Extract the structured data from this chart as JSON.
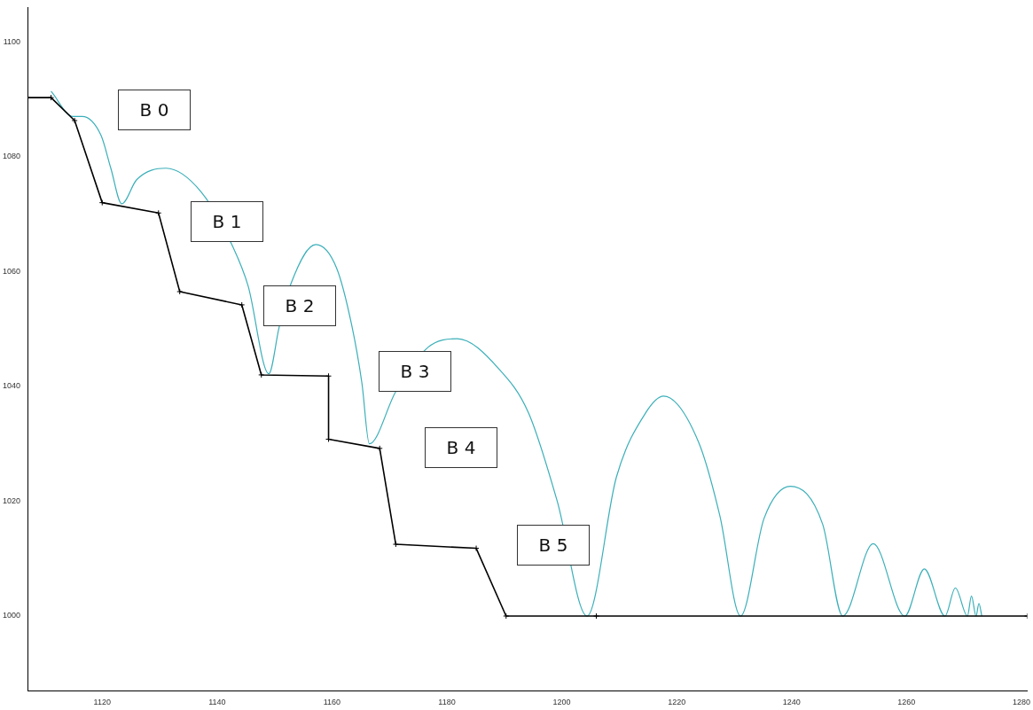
{
  "chart_data": {
    "type": "line",
    "xlim": [
      1107,
      1281
    ],
    "ylim": [
      987,
      1106
    ],
    "xticks": [
      1120,
      1140,
      1160,
      1180,
      1200,
      1220,
      1240,
      1260,
      1280
    ],
    "yticks": [
      1000,
      1020,
      1040,
      1060,
      1080,
      1100
    ],
    "grid": false,
    "legend": false,
    "annotations": [
      "B 0",
      "B 1",
      "B 2",
      "B 3",
      "B 4",
      "B 5"
    ],
    "series": [
      {
        "color": "#000000",
        "marker": "cross",
        "x": [
          1107,
          1111.1,
          1115.2,
          1120,
          1129.8,
          1133.5,
          1144.3,
          1147.7,
          1159.4,
          1159.4,
          1168.3,
          1171.1,
          1185.1,
          1190.3,
          1206,
          1281
        ],
        "values": [
          1090.3,
          1090.3,
          1086.3,
          1072.0,
          1070.2,
          1056.5,
          1054.2,
          1042.0,
          1041.8,
          1030.8,
          1029.2,
          1012.5,
          1011.8,
          1000,
          1000,
          1000
        ]
      },
      {
        "color": "#3aafb9",
        "marker": "none",
        "x": [
          1111.1,
          1114.9,
          1116.5,
          1119.8,
          1121.5,
          1123.4,
          1126.0,
          1131.1,
          1137.2,
          1142.8,
          1145.4,
          1149.0,
          1150.8,
          1152.9,
          1157.2,
          1160.8,
          1163.4,
          1165.2,
          1166.5,
          1171.1,
          1176.7,
          1181.8,
          1189.0,
          1194.2,
          1199.2,
          1204.4,
          1209.5,
          1214.6,
          1217.7,
          1223.8,
          1227.5,
          1231.1,
          1235.2,
          1239.8,
          1245.4,
          1248.9,
          1254.2,
          1259.7,
          1263.1,
          1266.7,
          1268.5,
          1270.6,
          1271.3,
          1272.1,
          1272.6,
          1273.1
        ],
        "values": [
          1091.4,
          1087.0,
          1087.0,
          1083.7,
          1078.0,
          1071.8,
          1076.0,
          1078.0,
          1073.9,
          1064.2,
          1057.5,
          1042.2,
          1050.3,
          1058.0,
          1064.7,
          1060.6,
          1050.8,
          1040.6,
          1030.0,
          1039.1,
          1046.8,
          1048.3,
          1043.1,
          1035.4,
          1020.0,
          1000,
          1024.2,
          1035.4,
          1038.3,
          1030.3,
          1017.5,
          1000,
          1017.0,
          1022.6,
          1016.0,
          1000,
          1012.6,
          1000,
          1008.2,
          1000,
          1004.9,
          1000,
          1003.5,
          1000,
          1002.2,
          1000
        ]
      }
    ]
  }
}
